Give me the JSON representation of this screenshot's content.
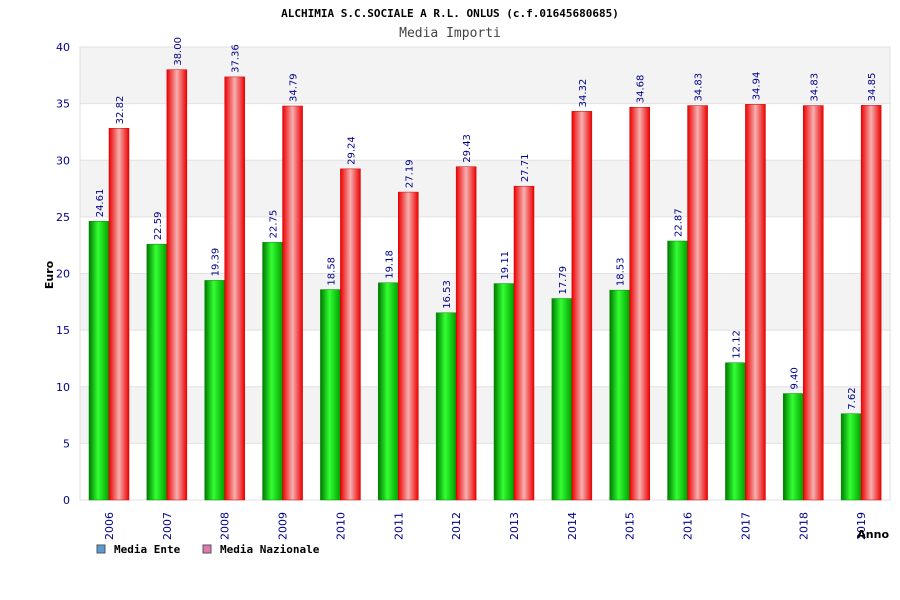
{
  "chart_data": {
    "type": "bar",
    "title": "ALCHIMIA S.C.SOCIALE A R.L. ONLUS (c.f.01645680685)",
    "subtitle": "Media Importi",
    "xlabel": "Anno",
    "ylabel": "Euro",
    "ylim": [
      0,
      40
    ],
    "yticks": [
      0,
      5,
      10,
      15,
      20,
      25,
      30,
      35,
      40
    ],
    "categories": [
      "2006",
      "2007",
      "2008",
      "2009",
      "2010",
      "2011",
      "2012",
      "2013",
      "2014",
      "2015",
      "2016",
      "2017",
      "2018",
      "2019"
    ],
    "series": [
      {
        "name": "Media Ente",
        "color": "#00cc00",
        "values": [
          24.61,
          22.59,
          19.39,
          22.75,
          18.58,
          19.18,
          16.53,
          19.11,
          17.79,
          18.53,
          22.87,
          12.12,
          9.4,
          7.62
        ],
        "labels": [
          "24.61",
          "22.59",
          "19.39",
          "22.75",
          "18.58",
          "19.18",
          "16.53",
          "19.11",
          "17.79",
          "18.53",
          "22.87",
          "12.12",
          "9.40",
          "7.62"
        ]
      },
      {
        "name": "Media Nazionale",
        "color": "#ff2020",
        "values": [
          32.82,
          38.0,
          37.36,
          34.79,
          29.24,
          27.19,
          29.43,
          27.71,
          34.32,
          34.68,
          34.83,
          34.94,
          34.83,
          34.85
        ],
        "labels": [
          "32.82",
          "38.00",
          "37.36",
          "34.79",
          "29.24",
          "27.19",
          "29.43",
          "27.71",
          "34.32",
          "34.68",
          "34.83",
          "34.94",
          "34.83",
          "34.85"
        ]
      }
    ],
    "legend": {
      "position": "bottom-left",
      "items": [
        {
          "label": "Media Ente",
          "swatch_color": "#5b9bd5"
        },
        {
          "label": "Media Nazionale",
          "swatch_color": "#e07bb0"
        }
      ]
    },
    "grid": true
  }
}
